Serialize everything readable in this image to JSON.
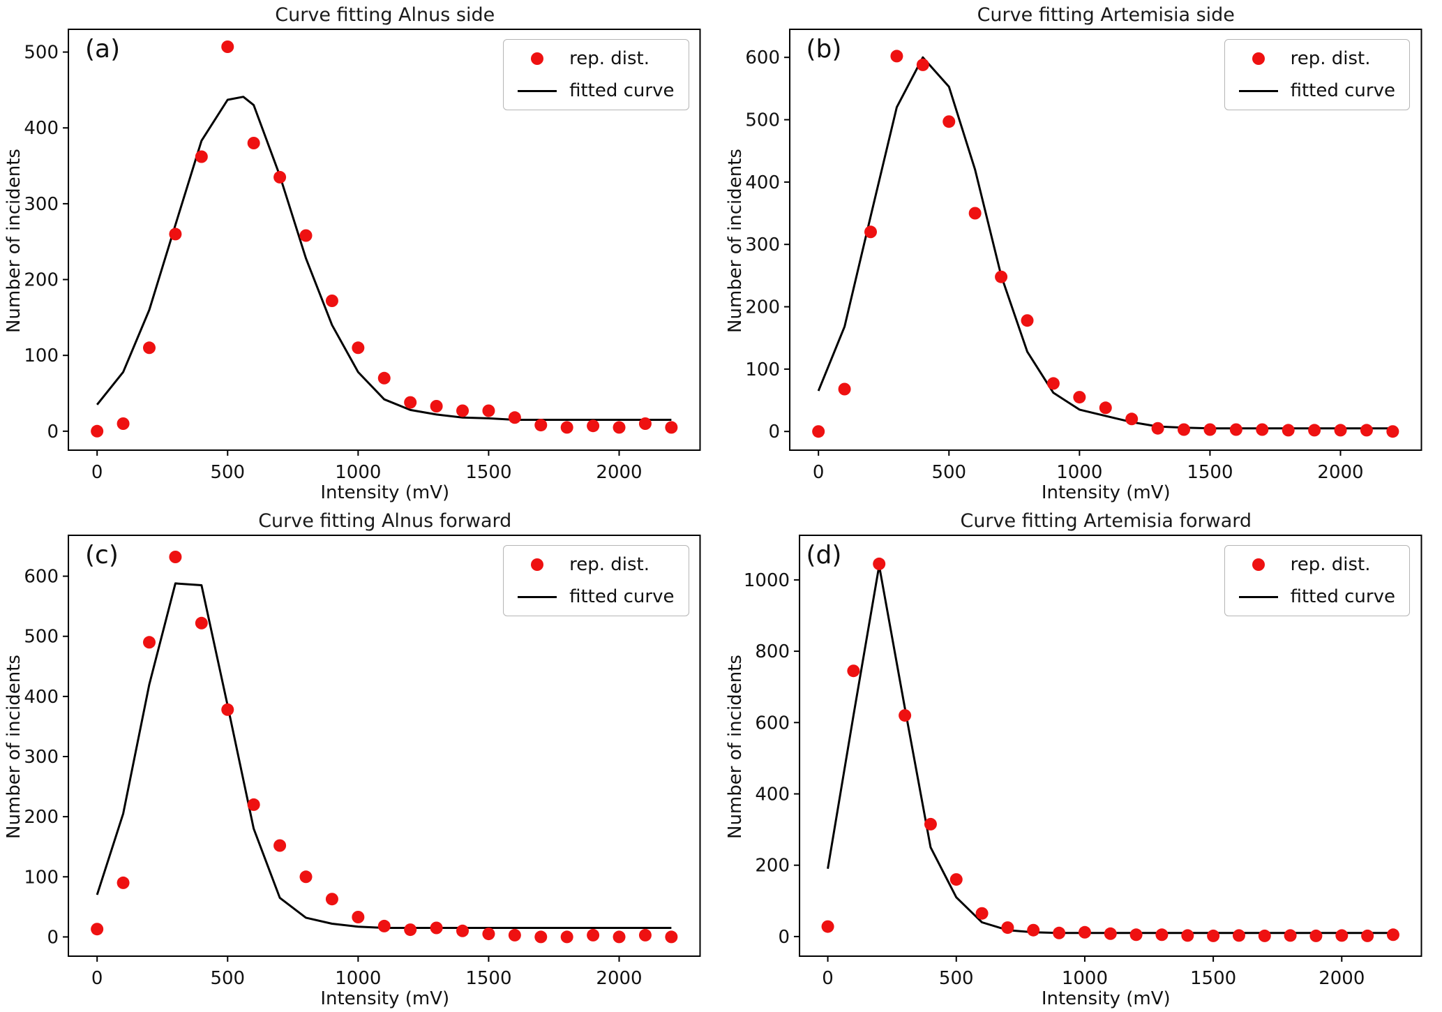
{
  "figure": {
    "background": "#ffffff"
  },
  "chart_data": [
    {
      "type": "scatter",
      "panel_label": "(a)",
      "title": "Curve fitting Alnus side",
      "xlabel": "Intensity (mV)",
      "ylabel": "Number of incidents",
      "xlim": [
        -110,
        2310
      ],
      "ylim": [
        -25,
        530
      ],
      "xticks": [
        0,
        500,
        1000,
        1500,
        2000
      ],
      "yticks": [
        0,
        100,
        200,
        300,
        400,
        500
      ],
      "grid": false,
      "legend_position": "upper right",
      "x": [
        0,
        100,
        200,
        300,
        400,
        500,
        600,
        700,
        800,
        900,
        1000,
        1100,
        1200,
        1300,
        1400,
        1500,
        1600,
        1700,
        1800,
        1900,
        2000,
        2100,
        2200
      ],
      "series": [
        {
          "name": "rep. dist.",
          "type": "scatter",
          "color": "#ee1111",
          "values": [
            0,
            10,
            110,
            260,
            362,
            507,
            380,
            335,
            258,
            172,
            110,
            70,
            38,
            33,
            27,
            27,
            18,
            8,
            5,
            7,
            5,
            10,
            5
          ]
        },
        {
          "name": "fitted curve",
          "type": "line",
          "color": "#000000",
          "points": [
            [
              0,
              35
            ],
            [
              100,
              78
            ],
            [
              200,
              160
            ],
            [
              300,
              272
            ],
            [
              400,
              383
            ],
            [
              500,
              437
            ],
            [
              560,
              441
            ],
            [
              600,
              430
            ],
            [
              700,
              337
            ],
            [
              800,
              228
            ],
            [
              900,
              140
            ],
            [
              1000,
              78
            ],
            [
              1100,
              42
            ],
            [
              1200,
              28
            ],
            [
              1300,
              22
            ],
            [
              1400,
              18
            ],
            [
              1500,
              17
            ],
            [
              1600,
              15
            ],
            [
              1700,
              15
            ],
            [
              1800,
              15
            ],
            [
              1900,
              15
            ],
            [
              2000,
              15
            ],
            [
              2100,
              15
            ],
            [
              2200,
              15
            ]
          ]
        }
      ]
    },
    {
      "type": "scatter",
      "panel_label": "(b)",
      "title": "Curve fitting Artemisia side",
      "xlabel": "Intensity (mV)",
      "ylabel": "Number of incidents",
      "xlim": [
        -110,
        2310
      ],
      "ylim": [
        -30,
        645
      ],
      "xticks": [
        0,
        500,
        1000,
        1500,
        2000
      ],
      "yticks": [
        0,
        100,
        200,
        300,
        400,
        500,
        600
      ],
      "grid": false,
      "legend_position": "upper right",
      "x": [
        0,
        100,
        200,
        300,
        400,
        500,
        600,
        700,
        800,
        900,
        1000,
        1100,
        1200,
        1300,
        1400,
        1500,
        1600,
        1700,
        1800,
        1900,
        2000,
        2100,
        2200
      ],
      "series": [
        {
          "name": "rep. dist.",
          "type": "scatter",
          "color": "#ee1111",
          "values": [
            0,
            68,
            320,
            602,
            588,
            497,
            350,
            248,
            178,
            77,
            55,
            38,
            20,
            5,
            3,
            3,
            3,
            3,
            2,
            2,
            2,
            2,
            0
          ]
        },
        {
          "name": "fitted curve",
          "type": "line",
          "color": "#000000",
          "points": [
            [
              0,
              65
            ],
            [
              100,
              168
            ],
            [
              200,
              345
            ],
            [
              300,
              520
            ],
            [
              400,
              600
            ],
            [
              500,
              553
            ],
            [
              600,
              420
            ],
            [
              700,
              250
            ],
            [
              800,
              128
            ],
            [
              900,
              62
            ],
            [
              1000,
              35
            ],
            [
              1100,
              25
            ],
            [
              1200,
              15
            ],
            [
              1300,
              8
            ],
            [
              1400,
              6
            ],
            [
              1500,
              5
            ],
            [
              1600,
              5
            ],
            [
              1700,
              5
            ],
            [
              1800,
              5
            ],
            [
              1900,
              5
            ],
            [
              2000,
              5
            ],
            [
              2100,
              5
            ],
            [
              2200,
              5
            ]
          ]
        }
      ]
    },
    {
      "type": "scatter",
      "panel_label": "(c)",
      "title": "Curve fitting Alnus forward",
      "xlabel": "Intensity (mV)",
      "ylabel": "Number of incidents",
      "xlim": [
        -110,
        2310
      ],
      "ylim": [
        -32,
        668
      ],
      "xticks": [
        0,
        500,
        1000,
        1500,
        2000
      ],
      "yticks": [
        0,
        100,
        200,
        300,
        400,
        500,
        600
      ],
      "grid": false,
      "legend_position": "upper right",
      "x": [
        0,
        100,
        200,
        300,
        400,
        500,
        600,
        700,
        800,
        900,
        1000,
        1100,
        1200,
        1300,
        1400,
        1500,
        1600,
        1700,
        1800,
        1900,
        2000,
        2100,
        2200
      ],
      "series": [
        {
          "name": "rep. dist.",
          "type": "scatter",
          "color": "#ee1111",
          "values": [
            13,
            90,
            490,
            632,
            522,
            378,
            220,
            152,
            100,
            63,
            33,
            18,
            12,
            15,
            10,
            5,
            3,
            0,
            0,
            3,
            0,
            3,
            0
          ]
        },
        {
          "name": "fitted curve",
          "type": "line",
          "color": "#000000",
          "points": [
            [
              0,
              70
            ],
            [
              100,
              205
            ],
            [
              200,
              420
            ],
            [
              300,
              588
            ],
            [
              400,
              585
            ],
            [
              500,
              385
            ],
            [
              600,
              180
            ],
            [
              700,
              65
            ],
            [
              800,
              32
            ],
            [
              900,
              22
            ],
            [
              1000,
              17
            ],
            [
              1100,
              15
            ],
            [
              1200,
              15
            ],
            [
              1300,
              15
            ],
            [
              1400,
              15
            ],
            [
              1500,
              15
            ],
            [
              1600,
              15
            ],
            [
              1700,
              15
            ],
            [
              1800,
              15
            ],
            [
              1900,
              15
            ],
            [
              2000,
              15
            ],
            [
              2100,
              15
            ],
            [
              2200,
              15
            ]
          ]
        }
      ]
    },
    {
      "type": "scatter",
      "panel_label": "(d)",
      "title": "Curve fitting Artemisia forward",
      "xlabel": "Intensity (mV)",
      "ylabel": "Number of incidents",
      "xlim": [
        -110,
        2310
      ],
      "ylim": [
        -55,
        1125
      ],
      "xticks": [
        0,
        500,
        1000,
        1500,
        2000
      ],
      "yticks": [
        0,
        200,
        400,
        600,
        800,
        1000
      ],
      "grid": false,
      "legend_position": "upper right",
      "x": [
        0,
        100,
        200,
        300,
        400,
        500,
        600,
        700,
        800,
        900,
        1000,
        1100,
        1200,
        1300,
        1400,
        1500,
        1600,
        1700,
        1800,
        1900,
        2000,
        2100,
        2200
      ],
      "series": [
        {
          "name": "rep. dist.",
          "type": "scatter",
          "color": "#ee1111",
          "values": [
            28,
            745,
            1045,
            620,
            315,
            160,
            65,
            25,
            18,
            10,
            12,
            8,
            5,
            5,
            3,
            2,
            3,
            2,
            3,
            2,
            3,
            2,
            5
          ]
        },
        {
          "name": "fitted curve",
          "type": "line",
          "color": "#000000",
          "points": [
            [
              0,
              190
            ],
            [
              100,
              620
            ],
            [
              200,
              1040
            ],
            [
              300,
              640
            ],
            [
              400,
              250
            ],
            [
              500,
              110
            ],
            [
              600,
              40
            ],
            [
              700,
              18
            ],
            [
              800,
              12
            ],
            [
              900,
              10
            ],
            [
              1000,
              10
            ],
            [
              1100,
              10
            ],
            [
              1200,
              10
            ],
            [
              1300,
              10
            ],
            [
              1400,
              10
            ],
            [
              1500,
              10
            ],
            [
              1600,
              10
            ],
            [
              1700,
              10
            ],
            [
              1800,
              10
            ],
            [
              1900,
              10
            ],
            [
              2000,
              10
            ],
            [
              2100,
              10
            ],
            [
              2200,
              10
            ]
          ]
        }
      ]
    }
  ]
}
